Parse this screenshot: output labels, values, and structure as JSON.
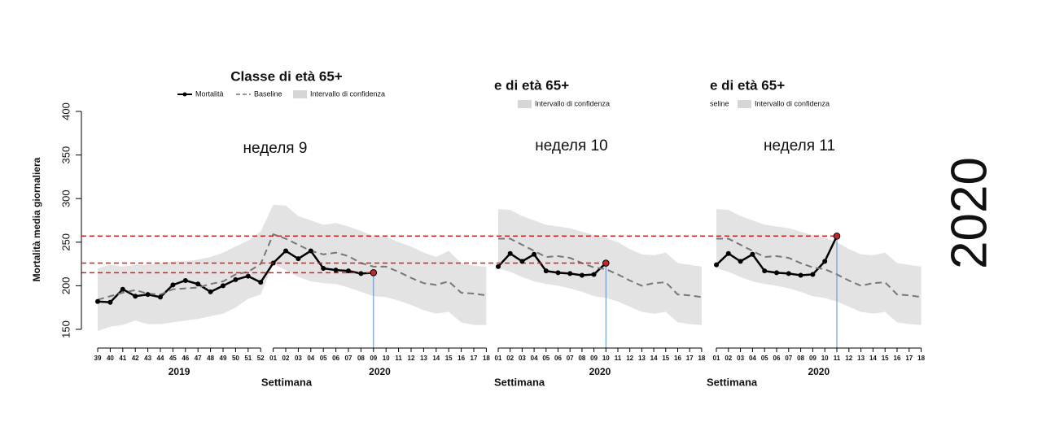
{
  "chart_data": [
    {
      "type": "line",
      "title": "Classe di età 65+",
      "annotation": "неделя 9",
      "y_label": "Mortalità media giornaliera",
      "x_label": "Settimana",
      "legend": {
        "mortality": "Mortalità",
        "baseline": "Baseline",
        "interval": "Intervallo di confidenza"
      },
      "groups": [
        {
          "label": "2019",
          "categories": [
            "39",
            "40",
            "41",
            "42",
            "43",
            "44",
            "45",
            "46",
            "47",
            "48",
            "49",
            "50",
            "51",
            "52"
          ]
        },
        {
          "label": "2020",
          "categories": [
            "01",
            "02",
            "03",
            "04",
            "05",
            "06",
            "07",
            "08",
            "09",
            "10",
            "11",
            "12",
            "13",
            "14",
            "15",
            "16",
            "17",
            "18"
          ]
        }
      ],
      "series": [
        {
          "name": "Mortalità",
          "color": "#000000",
          "values": [
            182,
            181,
            196,
            188,
            190,
            187,
            201,
            206,
            202,
            193,
            200,
            207,
            211,
            204,
            226,
            240,
            231,
            240,
            220,
            218,
            217,
            214,
            215,
            null,
            null,
            null,
            null,
            null,
            null,
            null,
            null,
            null
          ]
        },
        {
          "name": "Baseline",
          "color": "#777777",
          "values": [
            184,
            188,
            192,
            195,
            191,
            190,
            196,
            197,
            198,
            202,
            205,
            213,
            216,
            225,
            259,
            254,
            247,
            240,
            236,
            238,
            234,
            226,
            222,
            222,
            216,
            209,
            203,
            201,
            205,
            192,
            191,
            189
          ]
        }
      ],
      "interval": {
        "color": "#e3e3e3",
        "upper": [
          220,
          224,
          222,
          224,
          224,
          226,
          228,
          228,
          230,
          233,
          238,
          245,
          252,
          262,
          293,
          292,
          280,
          275,
          270,
          272,
          268,
          263,
          257,
          256,
          250,
          245,
          238,
          233,
          240,
          226,
          223,
          222
        ],
        "lower": [
          148,
          153,
          155,
          160,
          156,
          156,
          158,
          160,
          162,
          165,
          168,
          175,
          185,
          190,
          225,
          218,
          210,
          205,
          203,
          202,
          198,
          193,
          188,
          187,
          183,
          178,
          172,
          168,
          170,
          158,
          155,
          155
        ]
      },
      "reference": 215,
      "ylim": [
        150,
        400
      ],
      "yticks": [
        150,
        200,
        250,
        300,
        350,
        400
      ]
    },
    {
      "type": "line",
      "title": "e di età 65+",
      "annotation": "неделя 10",
      "x_label": "Settimana",
      "legend": {
        "interval": "Intervallo di confidenza"
      },
      "groups": [
        {
          "label": "2020",
          "categories": [
            "01",
            "02",
            "03",
            "04",
            "05",
            "06",
            "07",
            "08",
            "09",
            "10",
            "11",
            "12",
            "13",
            "14",
            "15",
            "16",
            "17",
            "18"
          ]
        }
      ],
      "series": [
        {
          "name": "Mortalità",
          "color": "#000000",
          "values": [
            222,
            237,
            228,
            236,
            217,
            215,
            214,
            212,
            213,
            226,
            null,
            null,
            null,
            null,
            null,
            null,
            null,
            null
          ]
        },
        {
          "name": "Baseline",
          "color": "#777777",
          "values": [
            254,
            254,
            247,
            240,
            233,
            234,
            232,
            226,
            221,
            219,
            213,
            206,
            200,
            203,
            204,
            190,
            189,
            187
          ]
        }
      ],
      "interval": {
        "color": "#e3e3e3",
        "upper": [
          288,
          287,
          280,
          275,
          270,
          268,
          266,
          262,
          258,
          255,
          250,
          242,
          236,
          235,
          238,
          226,
          224,
          222
        ],
        "lower": [
          220,
          216,
          210,
          205,
          202,
          200,
          197,
          193,
          188,
          186,
          182,
          176,
          170,
          168,
          170,
          158,
          156,
          155
        ]
      },
      "reference": 226,
      "ylim": [
        150,
        400
      ]
    },
    {
      "type": "line",
      "title": "e di età 65+",
      "annotation": "неделя 11",
      "x_label": "Settimana",
      "legend": {
        "baseline": "seline",
        "interval": "Intervallo di confidenza"
      },
      "groups": [
        {
          "label": "2020",
          "categories": [
            "01",
            "02",
            "03",
            "04",
            "05",
            "06",
            "07",
            "08",
            "09",
            "10",
            "11",
            "12",
            "13",
            "14",
            "15",
            "16",
            "17",
            "18"
          ]
        }
      ],
      "series": [
        {
          "name": "Mortalità",
          "color": "#000000",
          "values": [
            224,
            237,
            228,
            236,
            217,
            215,
            214,
            212,
            213,
            228,
            257,
            null,
            null,
            null,
            null,
            null,
            null,
            null
          ]
        },
        {
          "name": "Baseline",
          "color": "#777777",
          "values": [
            254,
            254,
            247,
            240,
            233,
            234,
            232,
            226,
            221,
            219,
            213,
            206,
            200,
            203,
            204,
            190,
            189,
            187
          ]
        }
      ],
      "interval": {
        "color": "#e3e3e3",
        "upper": [
          288,
          287,
          280,
          275,
          270,
          268,
          266,
          262,
          258,
          255,
          250,
          242,
          236,
          235,
          238,
          226,
          224,
          222
        ],
        "lower": [
          220,
          216,
          210,
          205,
          202,
          200,
          197,
          193,
          188,
          186,
          182,
          176,
          170,
          168,
          170,
          158,
          156,
          155
        ]
      },
      "reference": 257,
      "ylim": [
        150,
        400
      ]
    }
  ],
  "side_label": "2020"
}
